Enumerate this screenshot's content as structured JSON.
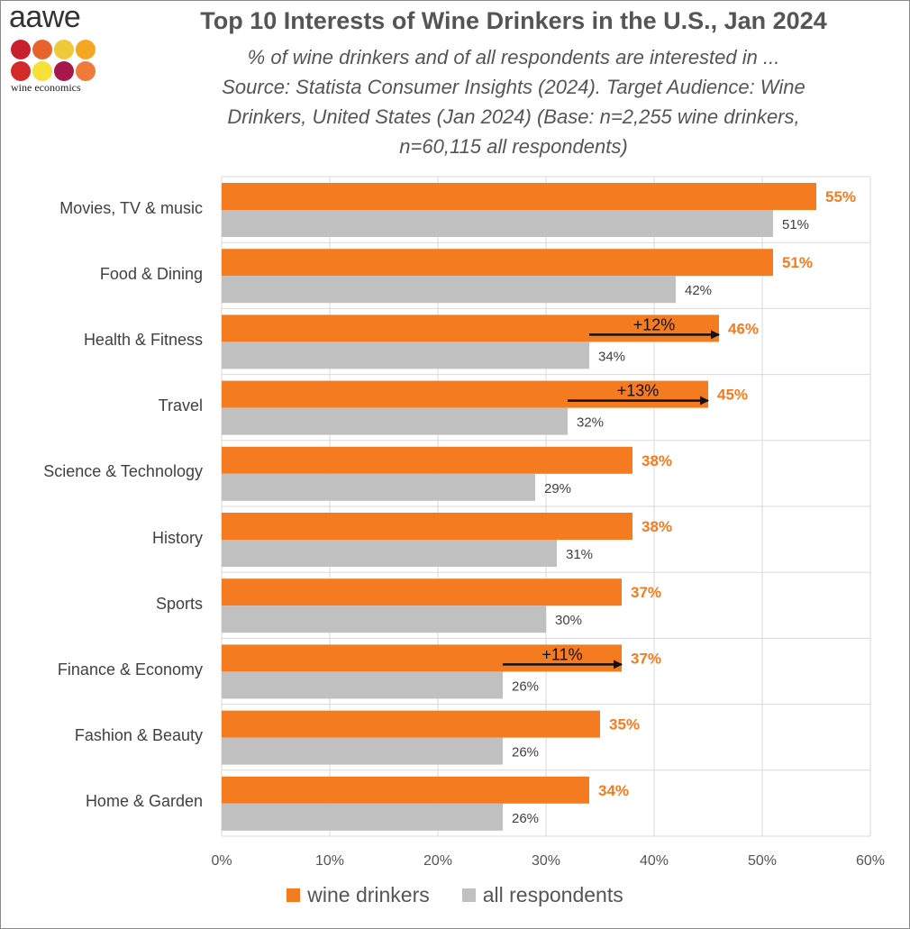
{
  "logo": {
    "word": "aawe",
    "subtitle": "wine economics",
    "dot_colors": [
      "#c8202f",
      "#e8622c",
      "#f0c93a",
      "#f5a623",
      "#d42a2a",
      "#f7e03a",
      "#a8174a",
      "#ef7b3a"
    ]
  },
  "title": "Top 10 Interests of Wine Drinkers in the U.S., Jan 2024",
  "subtitle_lines": [
    "% of wine drinkers and of all respondents are interested in ...",
    "Source: Statista Consumer Insights (2024). Target Audience: Wine",
    "Drinkers, United States (Jan 2024) (Base: n=2,255 wine drinkers,",
    "n=60,115 all respondents)"
  ],
  "colors": {
    "wine": "#f47b20",
    "all": "#c0c0c0",
    "grid": "#d9d9d9",
    "arrow": "#111111"
  },
  "chart_data": {
    "type": "bar",
    "orientation": "horizontal",
    "categories": [
      "Movies, TV & music",
      "Food & Dining",
      "Health & Fitness",
      "Travel",
      "Science & Technology",
      "History",
      "Sports",
      "Finance & Economy",
      "Fashion & Beauty",
      "Home & Garden"
    ],
    "series": [
      {
        "name": "wine drinkers",
        "values": [
          55,
          51,
          46,
          45,
          38,
          38,
          37,
          37,
          35,
          34
        ],
        "labels": [
          "55%",
          "51%",
          "46%",
          "45%",
          "38%",
          "38%",
          "37%",
          "37%",
          "35%",
          "34%"
        ]
      },
      {
        "name": "all respondents",
        "values": [
          51,
          42,
          34,
          32,
          29,
          31,
          30,
          26,
          26,
          26
        ],
        "labels": [
          "51%",
          "42%",
          "34%",
          "32%",
          "29%",
          "31%",
          "30%",
          "26%",
          "26%",
          "26%"
        ]
      }
    ],
    "xlim": [
      0,
      60
    ],
    "xticks": [
      0,
      10,
      20,
      30,
      40,
      50,
      60
    ],
    "xtick_labels": [
      "0%",
      "10%",
      "20%",
      "30%",
      "40%",
      "50%",
      "60%"
    ],
    "grid": true,
    "legend": "bottom",
    "annotations": [
      {
        "category": "Health & Fitness",
        "from": 34,
        "to": 46,
        "text": "+12%"
      },
      {
        "category": "Travel",
        "from": 32,
        "to": 45,
        "text": "+13%"
      },
      {
        "category": "Finance & Economy",
        "from": 26,
        "to": 37,
        "text": "+11%"
      }
    ]
  }
}
